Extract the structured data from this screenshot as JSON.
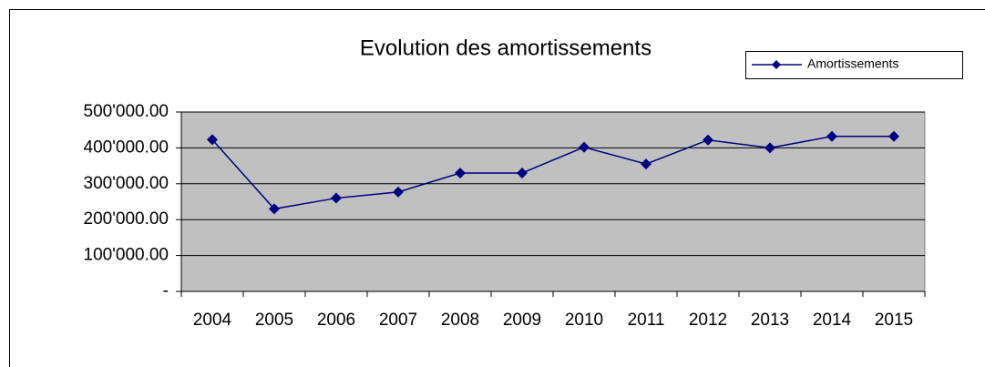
{
  "chart_data": {
    "type": "line",
    "title": "Evolution des amortissements",
    "categories": [
      "2004",
      "2005",
      "2006",
      "2007",
      "2008",
      "2009",
      "2010",
      "2011",
      "2012",
      "2013",
      "2014",
      "2015"
    ],
    "series": [
      {
        "name": "Amortissements",
        "color": "#000080",
        "values": [
          423000,
          230000,
          260000,
          277000,
          330000,
          330000,
          402000,
          355000,
          422000,
          400000,
          432000,
          432000
        ]
      }
    ],
    "ylim": [
      0,
      500000
    ],
    "yticks": [
      {
        "value": 0,
        "label": "-"
      },
      {
        "value": 100000,
        "label": "100'000.00"
      },
      {
        "value": 200000,
        "label": "200'000.00"
      },
      {
        "value": 300000,
        "label": "300'000.00"
      },
      {
        "value": 400000,
        "label": "400'000.00"
      },
      {
        "value": 500000,
        "label": "500'000.00"
      }
    ],
    "grid": true,
    "legend": "top-right"
  }
}
